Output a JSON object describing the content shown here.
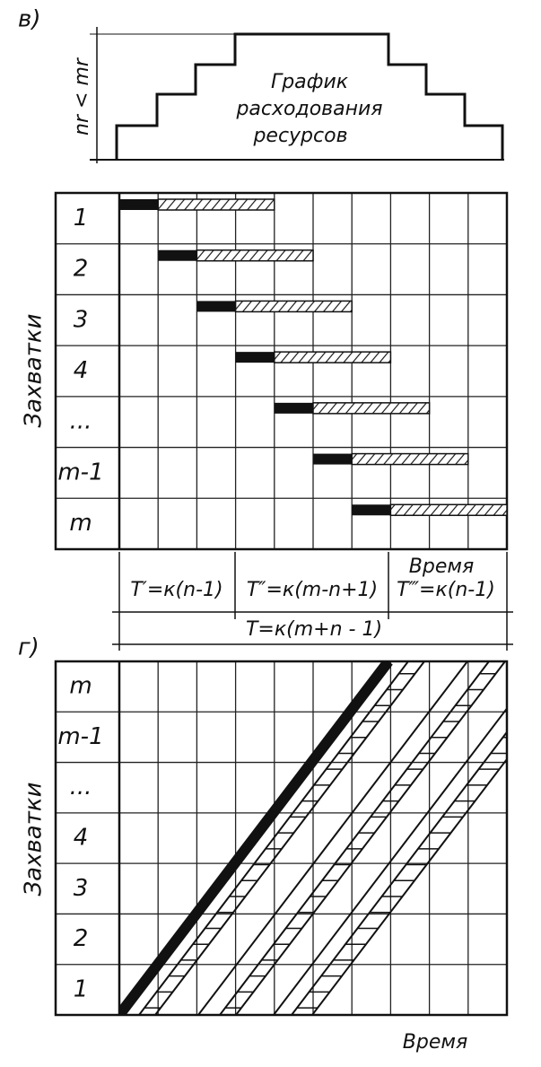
{
  "panel_v": {
    "label": "в)",
    "resource_chart": {
      "axis_label": "nr < mr",
      "title_lines": [
        "График",
        "расходования",
        "ресурсов"
      ]
    },
    "y_axis_title": "Захватки",
    "rows": [
      "1",
      "2",
      "3",
      "4",
      "...",
      "m-1",
      "m"
    ],
    "x_axis_title": "Время",
    "durations": [
      "T′=к(n-1)",
      "T″=к(m-n+1)",
      "T‴=к(n-1)"
    ],
    "total": "T=к(m+n - 1)"
  },
  "panel_g": {
    "label": "г)",
    "y_axis_title": "Захватки",
    "rows": [
      "m",
      "m-1",
      "...",
      "4",
      "3",
      "2",
      "1"
    ],
    "x_axis_title": "Время"
  }
}
